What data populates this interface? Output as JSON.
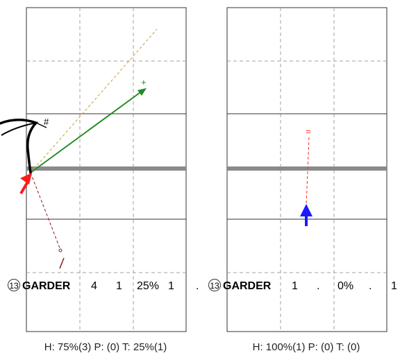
{
  "panels": [
    {
      "badge": "13",
      "player": "GARDER",
      "stats": [
        "4",
        "1",
        "25%",
        "1",
        "."
      ],
      "footer": "H: 75%(3)  P: (0)  T: 25%(1)",
      "markers": {
        "hash": "#",
        "plus": "+"
      },
      "colors": {
        "arrow_main": "#228b22",
        "arrow_origin": "#ff1a1a",
        "dotted_gold": "#c8a040",
        "dotted_maroon": "#8b1a1a"
      }
    },
    {
      "badge": "13",
      "player": "GARDER",
      "stats": [
        "1",
        ".",
        "0%",
        ".",
        "1"
      ],
      "footer": "H: 100%(1)  P: (0)  T: (0)",
      "markers": {
        "equals": "="
      },
      "colors": {
        "arrow_origin": "#1a1aff",
        "dotted_red": "#ff2a2a"
      }
    }
  ],
  "colors": {
    "net": "#8a8a8a",
    "grid_dash": "#a0a0a0",
    "court_line": "#333333"
  }
}
